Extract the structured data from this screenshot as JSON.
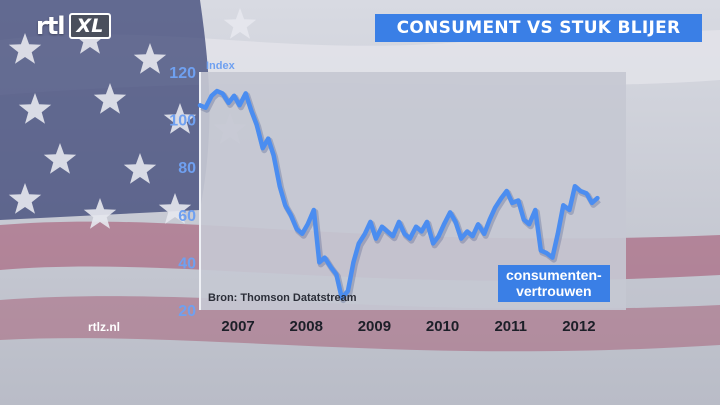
{
  "brand": {
    "logo_main": "rtl",
    "logo_badge": "XL",
    "website": "rtlz.nl"
  },
  "header": {
    "title": "CONSUMENT VS STUK BLIJER"
  },
  "chart_data": {
    "type": "line",
    "title": "CONSUMENT VS STUK BLIJER",
    "ylabel": "Index",
    "xlabel": "",
    "ylim": [
      20,
      120
    ],
    "xlim": [
      2006.5,
      2012.75
    ],
    "yticks": [
      20,
      40,
      60,
      80,
      100,
      120
    ],
    "xticks": [
      {
        "label": "2007",
        "pos": 2007
      },
      {
        "label": "2008",
        "pos": 2008
      },
      {
        "label": "2009",
        "pos": 2009
      },
      {
        "label": "2010",
        "pos": 2010
      },
      {
        "label": "2011",
        "pos": 2011
      },
      {
        "label": "2012",
        "pos": 2012
      }
    ],
    "grid": false,
    "source": "Bron: Thomson Datatstream",
    "series": [
      {
        "name": "consumenten-vertrouwen",
        "color": "#4b8df0",
        "x": [
          2006.5,
          2006.58,
          2006.67,
          2006.75,
          2006.83,
          2006.92,
          2007.0,
          2007.08,
          2007.17,
          2007.25,
          2007.33,
          2007.42,
          2007.5,
          2007.58,
          2007.67,
          2007.75,
          2007.83,
          2007.92,
          2008.0,
          2008.08,
          2008.17,
          2008.25,
          2008.33,
          2008.42,
          2008.5,
          2008.58,
          2008.67,
          2008.75,
          2008.83,
          2008.92,
          2009.0,
          2009.08,
          2009.17,
          2009.25,
          2009.33,
          2009.42,
          2009.5,
          2009.58,
          2009.67,
          2009.75,
          2009.83,
          2009.92,
          2010.0,
          2010.08,
          2010.17,
          2010.25,
          2010.33,
          2010.42,
          2010.5,
          2010.58,
          2010.67,
          2010.75,
          2010.83,
          2010.92,
          2011.0,
          2011.08,
          2011.17,
          2011.25,
          2011.33,
          2011.42,
          2011.5,
          2011.58,
          2011.67,
          2011.75,
          2011.83,
          2011.92,
          2012.0,
          2012.08,
          2012.17,
          2012.25,
          2012.33
        ],
        "values": [
          106,
          105,
          110,
          112,
          111,
          107,
          110,
          106,
          111,
          104,
          98,
          88,
          92,
          85,
          72,
          64,
          60,
          54,
          52,
          56,
          62,
          40,
          42,
          38,
          35,
          25,
          28,
          40,
          48,
          52,
          57,
          50,
          55,
          53,
          51,
          57,
          52,
          50,
          55,
          53,
          57,
          48,
          51,
          56,
          61,
          57,
          50,
          53,
          51,
          56,
          52,
          58,
          63,
          67,
          70,
          65,
          66,
          58,
          56,
          62,
          45,
          44,
          42,
          52,
          64,
          62,
          72,
          70,
          69,
          65,
          67
        ]
      }
    ]
  }
}
